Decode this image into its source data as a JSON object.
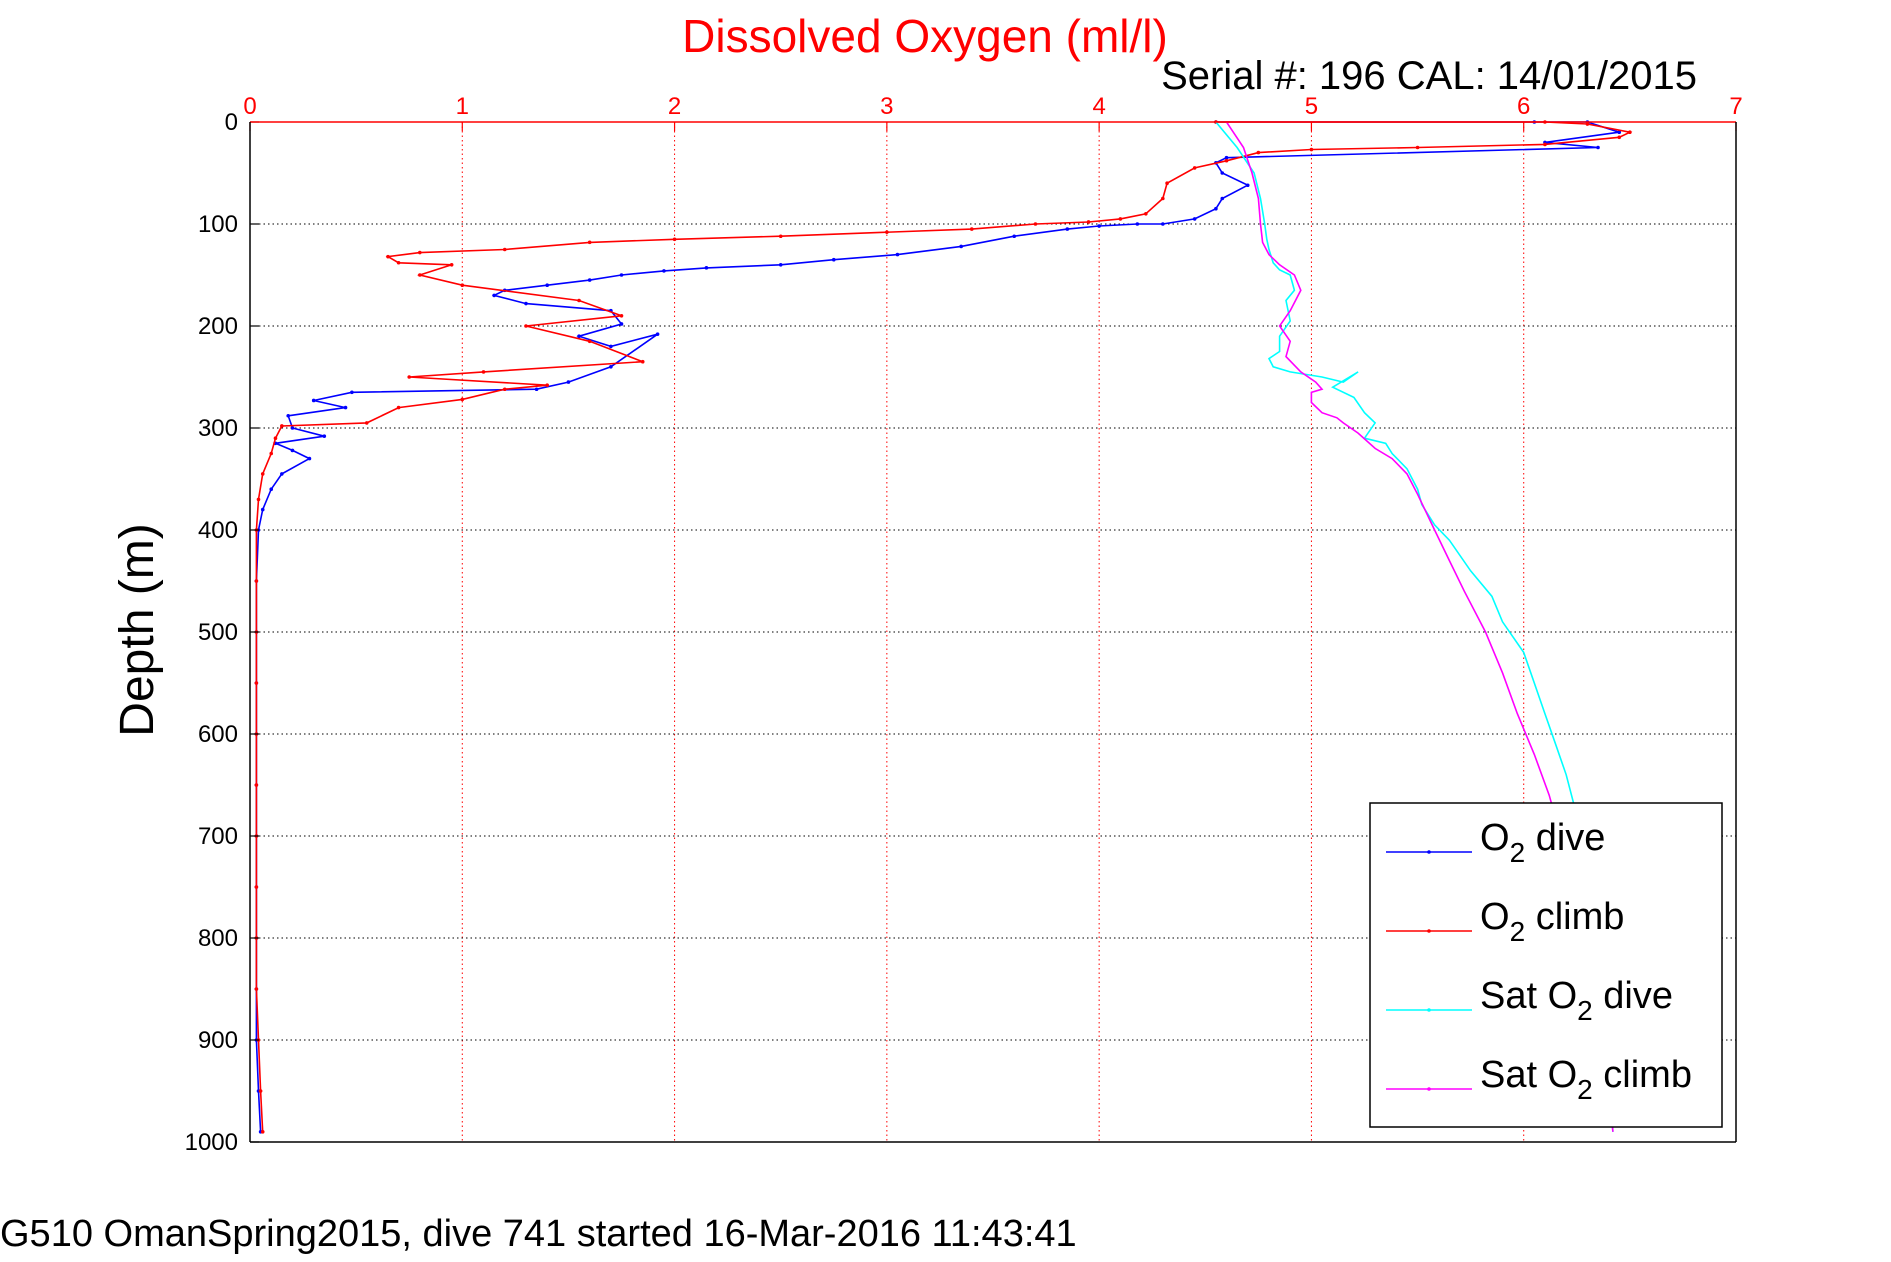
{
  "chart_data": {
    "type": "line",
    "title": "Dissolved Oxygen (ml/l)",
    "subtitle": "Serial #: 196  CAL: 14/01/2015",
    "footer": "G510 OmanSpring2015, dive 741 started 16-Mar-2016 11:43:41",
    "ylabel": "Depth (m)",
    "xlabel": "",
    "xlim": [
      0,
      7
    ],
    "ylim": [
      0,
      1000
    ],
    "y_reversed": true,
    "x_axis_position": "top",
    "grid": true,
    "x_ticks": [
      "0",
      "1",
      "2",
      "3",
      "4",
      "5",
      "6",
      "7"
    ],
    "y_ticks": [
      "0",
      "100",
      "200",
      "300",
      "400",
      "500",
      "600",
      "700",
      "800",
      "900",
      "1000"
    ],
    "colors": {
      "axis_x": "#ff0000",
      "axis_y": "#000000",
      "title": "#ff0000"
    },
    "legend": {
      "placement": "bottom-right",
      "entries": [
        {
          "base": "O",
          "sub": "2",
          "suffix": " dive",
          "color": "#0000ff"
        },
        {
          "base": "O",
          "sub": "2",
          "suffix": " climb",
          "color": "#ff0000"
        },
        {
          "base": "Sat O",
          "sub": "2",
          "suffix": " dive",
          "color": "#00ffff"
        },
        {
          "base": "Sat O",
          "sub": "2",
          "suffix": " climb",
          "color": "#ff00ff"
        }
      ]
    },
    "series": [
      {
        "name": "O2 dive",
        "color": "#0000ff",
        "style": "line-dots",
        "x": [
          4.55,
          6.05,
          6.3,
          6.45,
          6.1,
          6.35,
          4.6,
          4.55,
          4.58,
          4.7,
          4.58,
          4.55,
          4.45,
          4.3,
          4.18,
          4.0,
          3.85,
          3.6,
          3.35,
          3.05,
          2.75,
          2.5,
          2.15,
          1.95,
          1.75,
          1.6,
          1.4,
          1.2,
          1.15,
          1.3,
          1.7,
          1.75,
          1.55,
          1.7,
          1.92,
          1.7,
          1.5,
          1.35,
          0.48,
          0.3,
          0.45,
          0.18,
          0.2,
          0.35,
          0.12,
          0.2,
          0.28,
          0.15,
          0.1,
          0.06,
          0.04,
          0.03,
          0.03,
          0.03,
          0.03,
          0.03,
          0.03,
          0.03,
          0.03,
          0.03,
          0.03,
          0.04,
          0.05
        ],
        "y": [
          0,
          0,
          0,
          10,
          20,
          25,
          35,
          40,
          50,
          62,
          75,
          85,
          95,
          100,
          100,
          102,
          105,
          112,
          122,
          130,
          135,
          140,
          143,
          146,
          150,
          155,
          160,
          165,
          170,
          178,
          185,
          198,
          210,
          220,
          208,
          240,
          255,
          262,
          265,
          273,
          280,
          288,
          300,
          308,
          315,
          322,
          330,
          345,
          360,
          380,
          400,
          450,
          500,
          550,
          600,
          650,
          700,
          750,
          800,
          850,
          900,
          950,
          990
        ]
      },
      {
        "name": "O2 climb",
        "color": "#ff0000",
        "style": "line-dots",
        "x": [
          0.06,
          0.05,
          0.04,
          0.03,
          0.03,
          0.03,
          0.03,
          0.03,
          0.03,
          0.03,
          0.03,
          0.03,
          0.03,
          0.04,
          0.06,
          0.1,
          0.12,
          0.15,
          0.55,
          0.7,
          1.0,
          1.2,
          1.4,
          0.75,
          1.1,
          1.85,
          1.6,
          1.3,
          1.75,
          1.55,
          1.0,
          0.8,
          0.95,
          0.7,
          0.65,
          0.8,
          1.2,
          1.6,
          2.0,
          2.5,
          3.0,
          3.4,
          3.7,
          3.95,
          4.1,
          4.22,
          4.3,
          4.32,
          4.45,
          4.6,
          4.75,
          5.0,
          5.5,
          6.1,
          6.45,
          6.5,
          6.3,
          6.1,
          4.55
        ],
        "y": [
          990,
          950,
          900,
          850,
          800,
          750,
          700,
          650,
          600,
          550,
          500,
          450,
          400,
          370,
          345,
          325,
          310,
          298,
          295,
          280,
          272,
          262,
          258,
          250,
          245,
          235,
          215,
          200,
          190,
          175,
          160,
          150,
          140,
          138,
          132,
          128,
          125,
          118,
          115,
          112,
          108,
          105,
          100,
          98,
          95,
          90,
          75,
          60,
          45,
          38,
          30,
          27,
          25,
          22,
          15,
          10,
          2,
          0,
          0
        ]
      },
      {
        "name": "Sat O2 dive",
        "color": "#00ffff",
        "style": "line",
        "x": [
          4.55,
          4.65,
          4.73,
          4.76,
          4.78,
          4.79,
          4.8,
          4.82,
          4.85,
          4.9,
          4.92,
          4.88,
          4.9,
          4.85,
          4.85,
          4.8,
          4.82,
          4.9,
          5.05,
          5.15,
          5.22,
          5.1,
          5.2,
          5.25,
          5.3,
          5.25,
          5.35,
          5.38,
          5.45,
          5.5,
          5.52,
          5.58,
          5.65,
          5.75,
          5.85,
          5.9,
          6.0,
          6.05,
          6.1,
          6.15,
          6.2,
          6.25,
          6.3,
          6.35,
          6.42
        ],
        "y": [
          0,
          25,
          50,
          75,
          100,
          115,
          125,
          138,
          145,
          150,
          165,
          175,
          195,
          210,
          225,
          232,
          240,
          245,
          250,
          255,
          245,
          260,
          270,
          285,
          295,
          310,
          315,
          325,
          340,
          360,
          375,
          395,
          410,
          440,
          465,
          490,
          520,
          550,
          580,
          610,
          640,
          680,
          720,
          800,
          990
        ]
      },
      {
        "name": "Sat O2 climb",
        "color": "#ff00ff",
        "style": "line",
        "x": [
          6.42,
          6.38,
          6.3,
          6.2,
          6.12,
          6.05,
          5.97,
          5.9,
          5.82,
          5.72,
          5.65,
          5.58,
          5.5,
          5.45,
          5.38,
          5.3,
          5.22,
          5.15,
          5.12,
          5.05,
          5.0,
          5.0,
          5.05,
          5.02,
          4.95,
          4.88,
          4.9,
          4.85,
          4.9,
          4.95,
          4.92,
          4.85,
          4.8,
          4.77,
          4.76,
          4.75,
          4.72,
          4.68,
          4.6
        ],
        "y": [
          990,
          900,
          800,
          720,
          660,
          620,
          580,
          540,
          500,
          460,
          430,
          400,
          365,
          345,
          330,
          320,
          305,
          295,
          290,
          285,
          275,
          265,
          262,
          255,
          245,
          230,
          215,
          200,
          185,
          165,
          150,
          140,
          130,
          118,
          100,
          75,
          50,
          25,
          0
        ]
      }
    ]
  }
}
